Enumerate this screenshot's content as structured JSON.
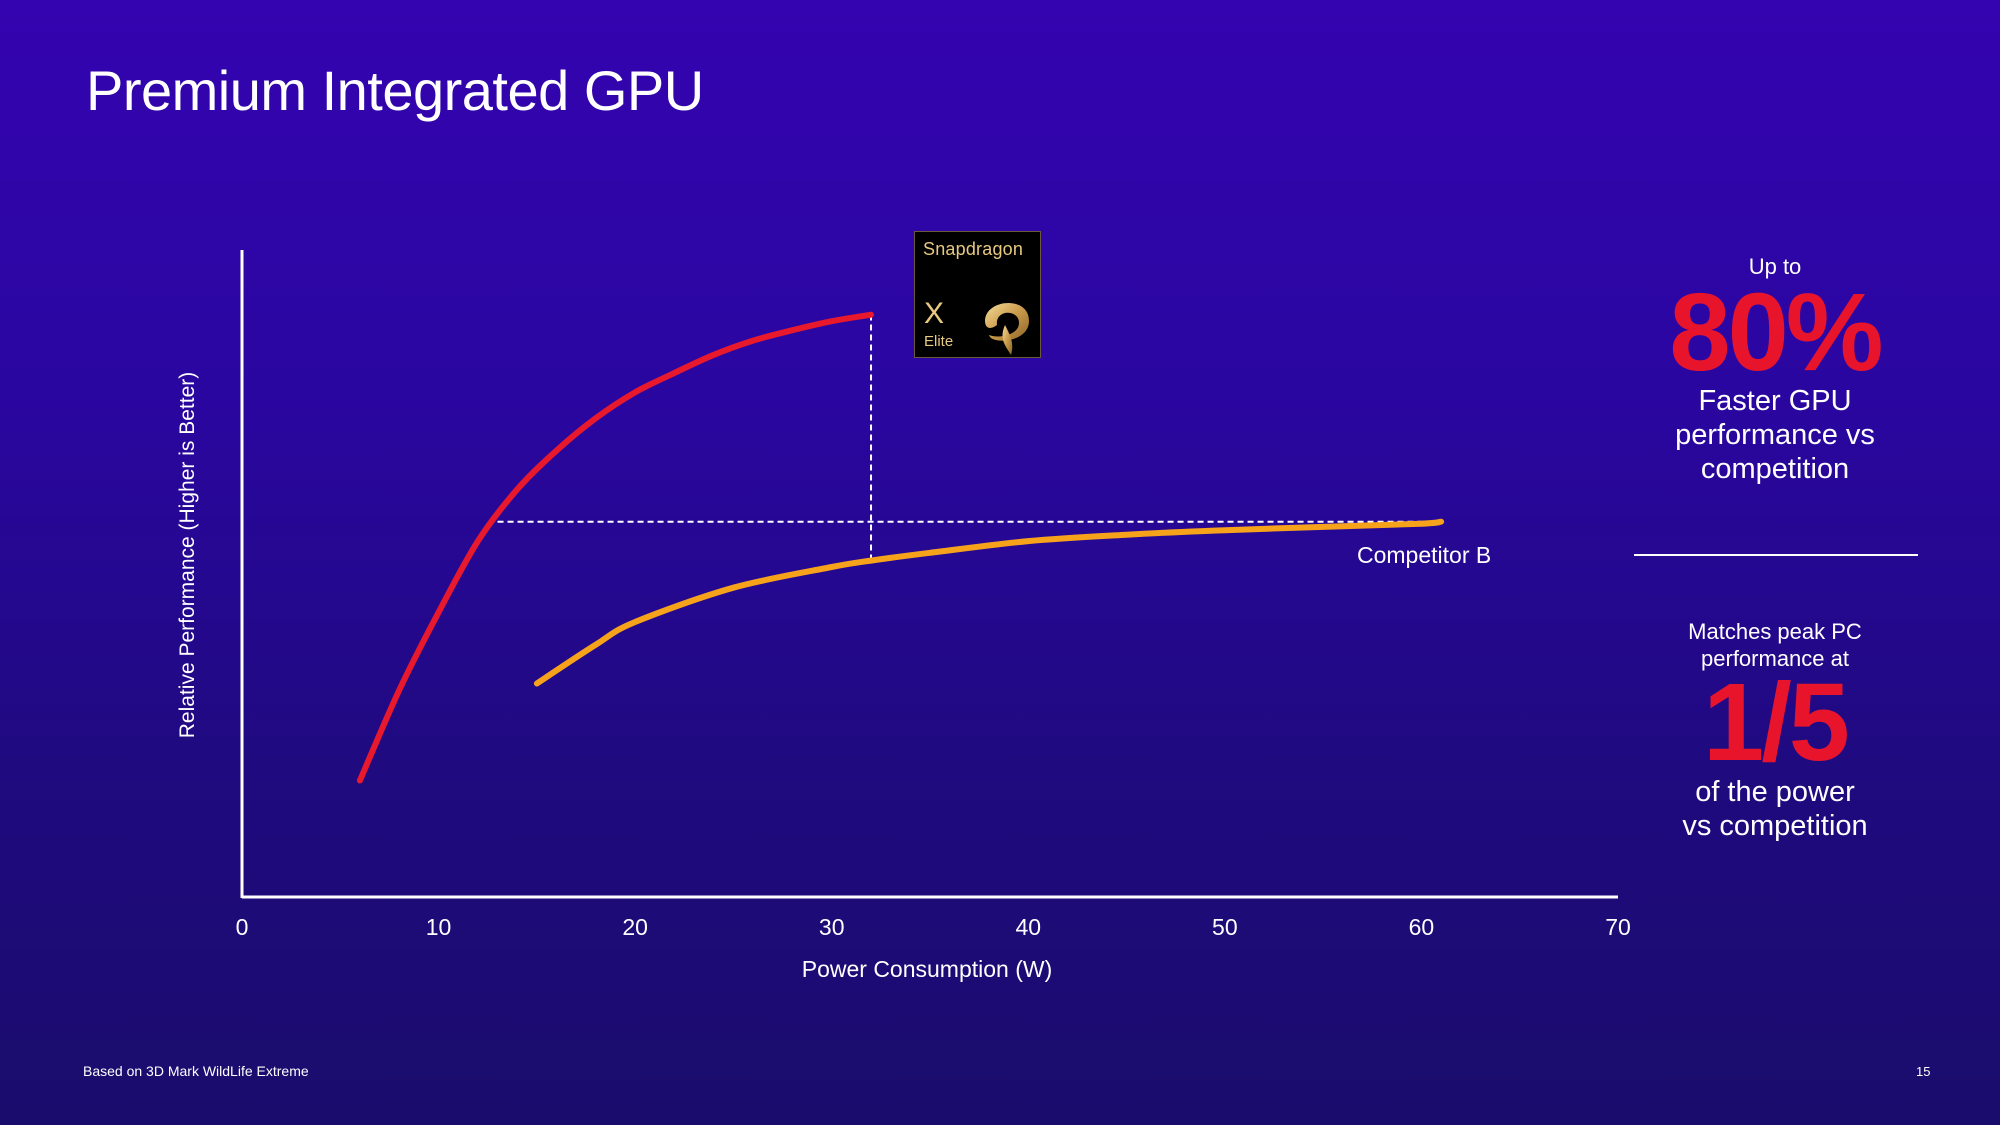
{
  "title": "Premium Integrated GPU",
  "footnote": "Based on 3D Mark WildLife Extreme",
  "page_number": "15",
  "colors": {
    "background": "#2a06a0",
    "snapdragon": "#e8192c",
    "competitor": "#f7a21b",
    "highlight": "#e8142c"
  },
  "badge": {
    "brand": "Snapdragon",
    "model": "X",
    "tier": "Elite",
    "icon": "snapdragon-logo-icon"
  },
  "callouts": {
    "first": {
      "prefix": "Up to",
      "value": "80%",
      "lines": [
        "Faster GPU",
        "performance vs",
        "competition"
      ]
    },
    "second": {
      "prefix_lines": [
        "Matches peak PC",
        "performance at"
      ],
      "value": "1/5",
      "lines": [
        "of the power",
        "vs competition"
      ]
    }
  },
  "chart_data": {
    "type": "line",
    "title": "",
    "xlabel": "Power Consumption (W)",
    "ylabel": "Relative Performance (Higher is Better)",
    "xlim": [
      0,
      70
    ],
    "xticks": [
      0,
      10,
      20,
      30,
      40,
      50,
      60,
      70
    ],
    "ylim": [
      0,
      1
    ],
    "y_axis_numeric_labels": false,
    "grid": false,
    "series": [
      {
        "name": "",
        "label_source": "Snapdragon X Elite badge",
        "color": "#e8192c",
        "points": [
          [
            6,
            0.18
          ],
          [
            8,
            0.32
          ],
          [
            10,
            0.44
          ],
          [
            12,
            0.55
          ],
          [
            14,
            0.63
          ],
          [
            16,
            0.69
          ],
          [
            18,
            0.74
          ],
          [
            20,
            0.78
          ],
          [
            22,
            0.81
          ],
          [
            24,
            0.838
          ],
          [
            26,
            0.86
          ],
          [
            28,
            0.876
          ],
          [
            30,
            0.89
          ],
          [
            32,
            0.9
          ]
        ]
      },
      {
        "name": "Competitor B",
        "color": "#f7a21b",
        "points": [
          [
            15,
            0.33
          ],
          [
            18,
            0.39
          ],
          [
            20,
            0.425
          ],
          [
            25,
            0.478
          ],
          [
            30,
            0.51
          ],
          [
            32,
            0.52
          ],
          [
            35,
            0.532
          ],
          [
            40,
            0.55
          ],
          [
            45,
            0.56
          ],
          [
            50,
            0.567
          ],
          [
            55,
            0.572
          ],
          [
            60,
            0.577
          ],
          [
            61,
            0.58
          ]
        ]
      }
    ],
    "reference_lines": [
      {
        "type": "horizontal",
        "y": 0.58,
        "from_x": 13,
        "to_x": 61,
        "style": "dashed"
      },
      {
        "type": "vertical",
        "x": 32,
        "from_y": 0.52,
        "to_y": 0.9,
        "style": "dashed"
      }
    ]
  }
}
